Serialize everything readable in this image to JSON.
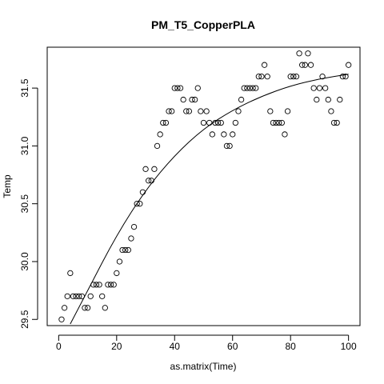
{
  "chart_data": {
    "type": "scatter",
    "title": "PM_T5_CopperPLA",
    "xlabel": "as.matrix(Time)",
    "ylabel": "Temp",
    "xlim": [
      -3.96,
      103.96
    ],
    "ylim": [
      29.4464,
      31.8536
    ],
    "x_ticks": [
      0,
      20,
      40,
      60,
      80,
      100
    ],
    "x_tick_labels": [
      "0",
      "20",
      "40",
      "60",
      "80",
      "100"
    ],
    "y_ticks": [
      29.5,
      30.0,
      30.5,
      31.0,
      31.5
    ],
    "y_tick_labels": [
      "29.5",
      "30.0",
      "30.5",
      "31.0",
      "31.5"
    ],
    "grid": false,
    "series": [
      {
        "kind": "points",
        "x": [
          1,
          2,
          3,
          4,
          5,
          6,
          7,
          8,
          9,
          10,
          11,
          12,
          13,
          14,
          15,
          16,
          17,
          18,
          19,
          20,
          21,
          22,
          23,
          24,
          25,
          26,
          27,
          28,
          29,
          30,
          31,
          32,
          33,
          34,
          35,
          36,
          37,
          38,
          39,
          40,
          41,
          42,
          43,
          44,
          45,
          46,
          47,
          48,
          49,
          50,
          51,
          52,
          53,
          54,
          55,
          56,
          57,
          58,
          59,
          60,
          61,
          62,
          63,
          64,
          65,
          66,
          67,
          68,
          69,
          70,
          71,
          72,
          73,
          74,
          75,
          76,
          77,
          78,
          79,
          80,
          81,
          82,
          83,
          84,
          85,
          86,
          87,
          88,
          89,
          90,
          91,
          92,
          93,
          94,
          95,
          96,
          97,
          98,
          99,
          100
        ],
        "y": [
          29.5,
          29.6,
          29.7,
          29.9,
          29.7,
          29.7,
          29.7,
          29.7,
          29.6,
          29.6,
          29.7,
          29.8,
          29.8,
          29.8,
          29.7,
          29.6,
          29.8,
          29.8,
          29.8,
          29.9,
          30.0,
          30.1,
          30.1,
          30.1,
          30.2,
          30.3,
          30.5,
          30.5,
          30.6,
          30.8,
          30.7,
          30.7,
          30.8,
          31.0,
          31.1,
          31.2,
          31.2,
          31.3,
          31.3,
          31.5,
          31.5,
          31.5,
          31.4,
          31.3,
          31.3,
          31.4,
          31.4,
          31.5,
          31.3,
          31.2,
          31.3,
          31.2,
          31.1,
          31.2,
          31.2,
          31.2,
          31.1,
          31.0,
          31.0,
          31.1,
          31.2,
          31.3,
          31.4,
          31.5,
          31.5,
          31.5,
          31.5,
          31.5,
          31.6,
          31.6,
          31.7,
          31.6,
          31.3,
          31.2,
          31.2,
          31.2,
          31.2,
          31.1,
          31.3,
          31.6,
          31.6,
          31.6,
          31.8,
          31.7,
          31.7,
          31.8,
          31.7,
          31.5,
          31.4,
          31.5,
          31.6,
          31.5,
          31.4,
          31.3,
          31.2,
          31.2,
          31.4,
          31.6,
          31.6,
          31.7
        ]
      },
      {
        "kind": "curve",
        "x": [
          4,
          10,
          20,
          30,
          40,
          50,
          60,
          70,
          80,
          90,
          100
        ],
        "y": [
          29.46,
          29.75,
          30.23,
          30.62,
          30.92,
          31.15,
          31.31,
          31.43,
          31.52,
          31.58,
          31.62
        ]
      }
    ]
  }
}
